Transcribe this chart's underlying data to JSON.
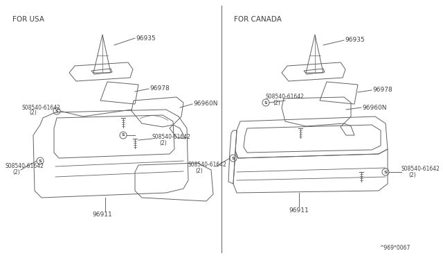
{
  "bg_color": "#ffffff",
  "line_color": "#606060",
  "text_color": "#404040",
  "title_left": "FOR USA",
  "title_right": "FOR CANADA",
  "diagram_code": "^969*0067",
  "figsize": [
    6.4,
    3.72
  ],
  "dpi": 100,
  "label_96935": "96935",
  "label_96978": "96978",
  "label_96960N": "96960N",
  "label_96911": "96911",
  "label_screw": "S08540-61642",
  "label_screw2": "(2)"
}
